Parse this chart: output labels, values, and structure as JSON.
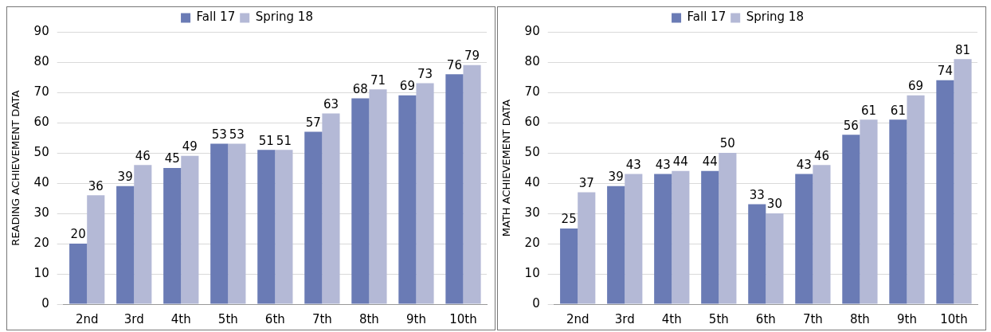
{
  "chart_data": [
    {
      "type": "bar",
      "ylabel": "READING ACHIEVEMENT DATA",
      "categories": [
        "2nd",
        "3rd",
        "4th",
        "5th",
        "6th",
        "7th",
        "8th",
        "9th",
        "10th"
      ],
      "series": [
        {
          "name": "Fall 17",
          "color": "#6a7bb5",
          "values": [
            20,
            39,
            45,
            53,
            51,
            57,
            68,
            69,
            76
          ]
        },
        {
          "name": "Spring 18",
          "color": "#b4b9d6",
          "values": [
            36,
            46,
            49,
            53,
            51,
            63,
            71,
            73,
            79
          ]
        }
      ],
      "ylim": [
        0,
        90
      ],
      "yticks": [
        0,
        10,
        20,
        30,
        40,
        50,
        60,
        70,
        80,
        90
      ],
      "grid": "y",
      "legend": "top",
      "data_labels": true
    },
    {
      "type": "bar",
      "ylabel": "MATH ACHIEVEMENT DATA",
      "categories": [
        "2nd",
        "3rd",
        "4th",
        "5th",
        "6th",
        "7th",
        "8th",
        "9th",
        "10th"
      ],
      "series": [
        {
          "name": "Fall 17",
          "color": "#6a7bb5",
          "values": [
            25,
            39,
            43,
            44,
            33,
            43,
            56,
            61,
            74
          ]
        },
        {
          "name": "Spring 18",
          "color": "#b4b9d6",
          "values": [
            37,
            43,
            44,
            50,
            30,
            46,
            61,
            69,
            81
          ]
        }
      ],
      "ylim": [
        0,
        90
      ],
      "yticks": [
        0,
        10,
        20,
        30,
        40,
        50,
        60,
        70,
        80,
        90
      ],
      "grid": "y",
      "legend": "top",
      "data_labels": true
    }
  ]
}
